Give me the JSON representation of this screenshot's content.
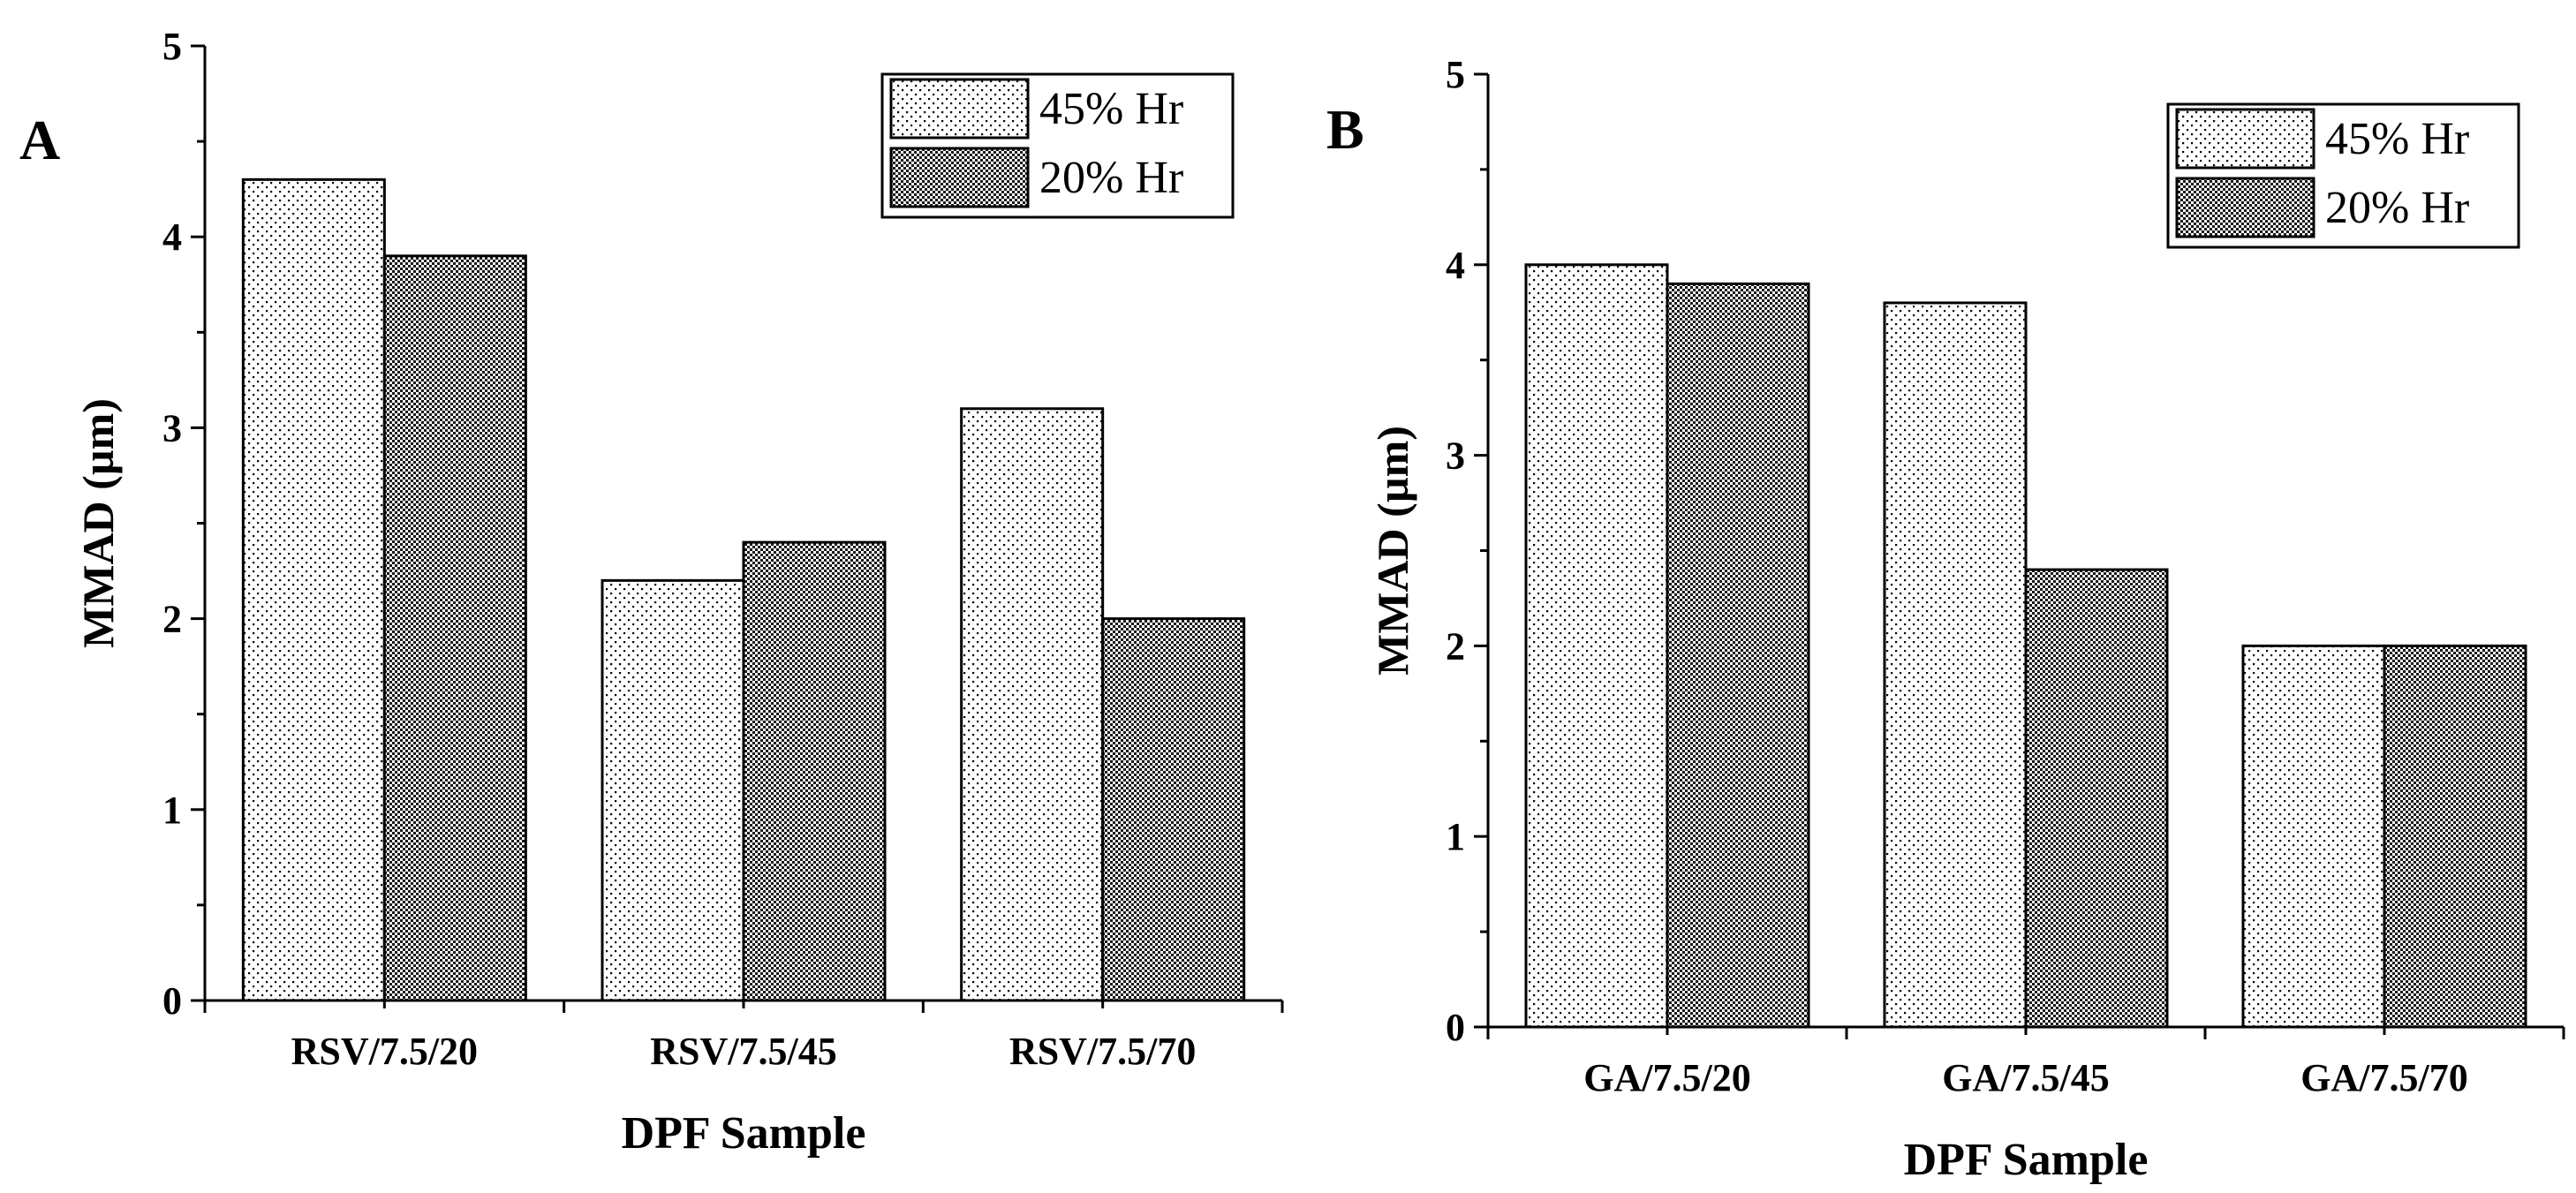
{
  "figure": {
    "panels": [
      "A",
      "B"
    ]
  },
  "colors": {
    "axis": "#000000",
    "pattern_45": "#000000",
    "pattern_20": "#000000",
    "background": "#ffffff"
  },
  "chart_data": [
    {
      "type": "bar",
      "panel_label": "A",
      "title": "",
      "xlabel": "DPF Sample",
      "ylabel": "MMAD (µm)",
      "ylim": [
        0,
        5
      ],
      "yticks": [
        0,
        1,
        2,
        3,
        4,
        5
      ],
      "categories": [
        "RSV/7.5/20",
        "RSV/7.5/45",
        "RSV/7.5/70"
      ],
      "series": [
        {
          "name": "45% Hr",
          "pattern": "sparse-dots",
          "values": [
            4.3,
            2.2,
            3.1
          ]
        },
        {
          "name": "20% Hr",
          "pattern": "dense-checker",
          "values": [
            3.9,
            2.4,
            2.0
          ]
        }
      ],
      "legend": {
        "position": "top-right"
      },
      "grid": false
    },
    {
      "type": "bar",
      "panel_label": "B",
      "title": "",
      "xlabel": "DPF Sample",
      "ylabel": "MMAD (µm)",
      "ylim": [
        0,
        5
      ],
      "yticks": [
        0,
        1,
        2,
        3,
        4,
        5
      ],
      "categories": [
        "GA/7.5/20",
        "GA/7.5/45",
        "GA/7.5/70"
      ],
      "series": [
        {
          "name": "45% Hr",
          "pattern": "sparse-dots",
          "values": [
            4.0,
            3.8,
            2.0
          ]
        },
        {
          "name": "20% Hr",
          "pattern": "dense-checker",
          "values": [
            3.9,
            2.4,
            2.0
          ]
        }
      ],
      "legend": {
        "position": "top-right"
      },
      "grid": false
    }
  ]
}
